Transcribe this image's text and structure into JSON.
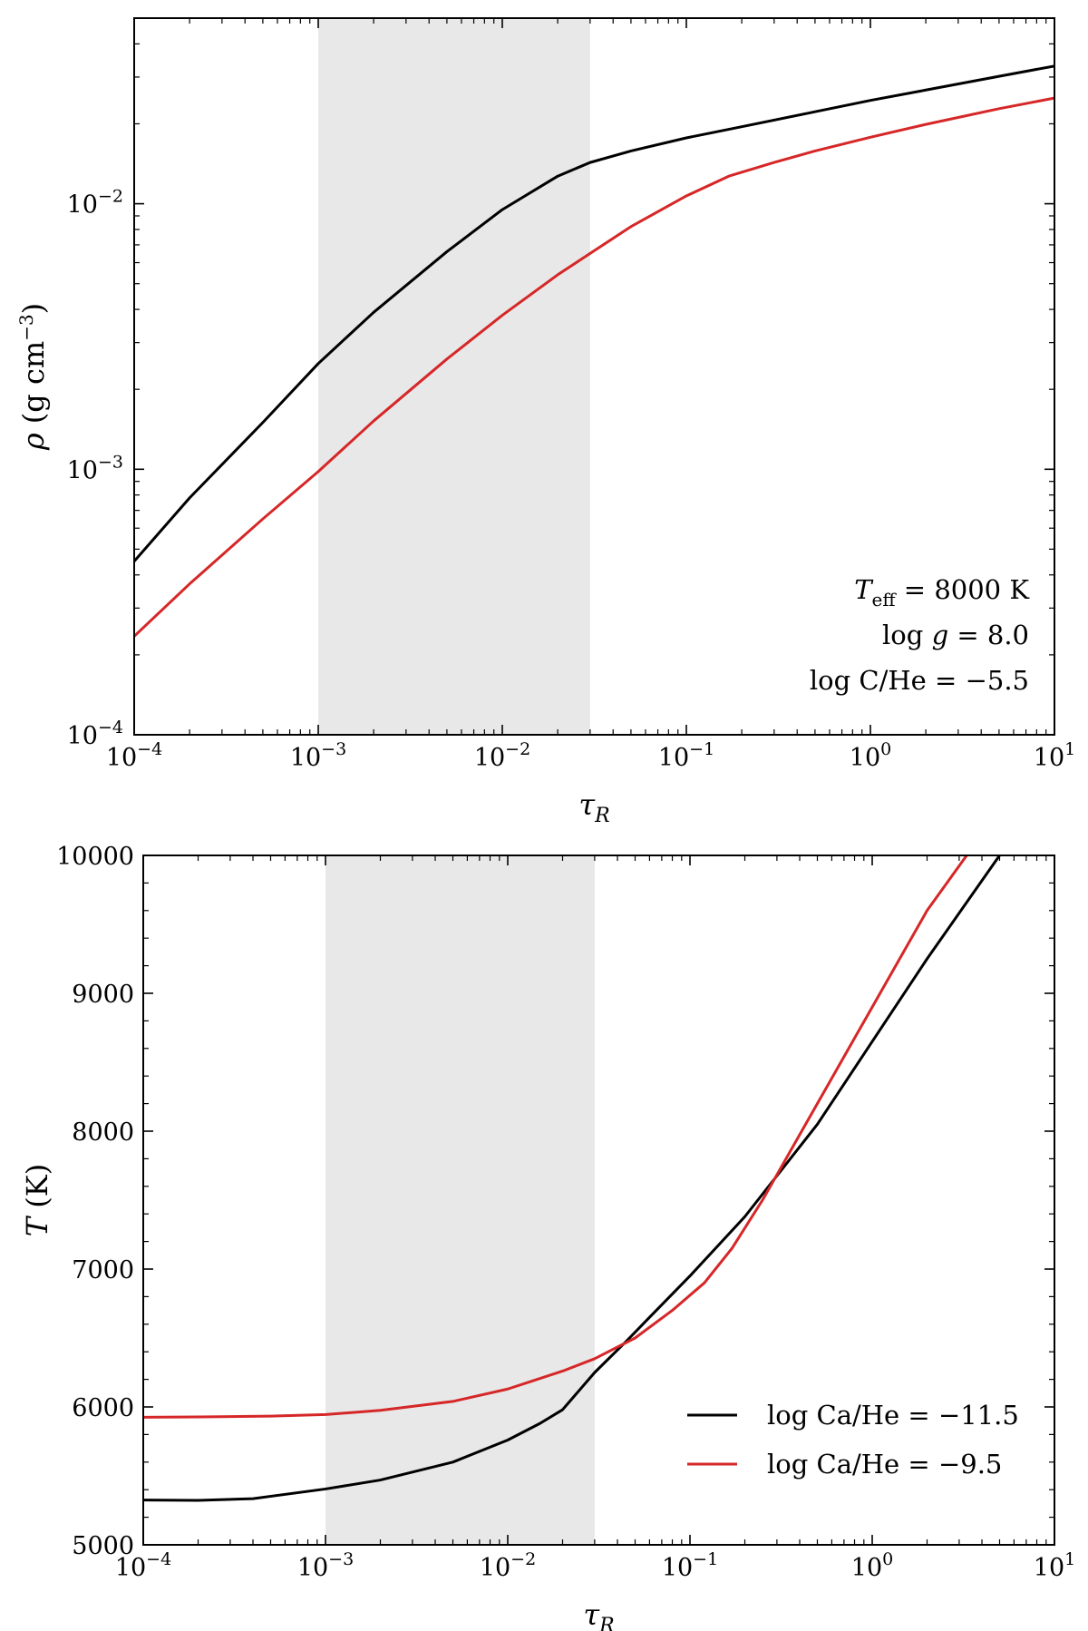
{
  "chart_data": [
    {
      "type": "line",
      "xscale": "log",
      "yscale": "log",
      "xlim": [
        0.0001,
        10
      ],
      "ylim": [
        0.0001,
        0.05
      ],
      "xlabel": "τ_R",
      "ylabel": "ρ (g cm^−3)",
      "x_ticks": [
        {
          "value": 0.0001,
          "base": "10",
          "exp": "−4"
        },
        {
          "value": 0.001,
          "base": "10",
          "exp": "−3"
        },
        {
          "value": 0.01,
          "base": "10",
          "exp": "−2"
        },
        {
          "value": 0.1,
          "base": "10",
          "exp": "−1"
        },
        {
          "value": 1,
          "base": "10",
          "exp": "0"
        },
        {
          "value": 10,
          "base": "10",
          "exp": "1"
        }
      ],
      "y_ticks": [
        {
          "value": 0.0001,
          "base": "10",
          "exp": "−4"
        },
        {
          "value": 0.001,
          "base": "10",
          "exp": "−3"
        },
        {
          "value": 0.01,
          "base": "10",
          "exp": "−2"
        }
      ],
      "shaded_region": {
        "x": [
          0.001,
          0.03
        ],
        "color": "#e8e8e8"
      },
      "annotations": [
        "T_eff = 8000 K",
        "log g = 8.0",
        "log C/He = −5.5"
      ],
      "annotation_position": "bottom-right",
      "series": [
        {
          "color": "#000000",
          "x": [
            0.0001,
            0.0002,
            0.0005,
            0.001,
            0.002,
            0.005,
            0.01,
            0.02,
            0.03,
            0.05,
            0.1,
            0.2,
            0.5,
            1,
            2,
            5,
            10
          ],
          "y": [
            0.00045,
            0.00078,
            0.0015,
            0.0025,
            0.0039,
            0.0066,
            0.0095,
            0.0127,
            0.0143,
            0.0158,
            0.0177,
            0.0195,
            0.0222,
            0.0245,
            0.0268,
            0.0302,
            0.033
          ]
        },
        {
          "color": "#d62728",
          "x": [
            0.0001,
            0.0002,
            0.0005,
            0.001,
            0.002,
            0.005,
            0.01,
            0.02,
            0.03,
            0.05,
            0.1,
            0.17,
            0.3,
            0.5,
            1,
            2,
            5,
            10
          ],
          "y": [
            0.000235,
            0.00037,
            0.00065,
            0.00098,
            0.00152,
            0.0026,
            0.0038,
            0.0054,
            0.0065,
            0.0082,
            0.0107,
            0.0127,
            0.0143,
            0.0158,
            0.0178,
            0.0199,
            0.0228,
            0.025
          ]
        }
      ]
    },
    {
      "type": "line",
      "xscale": "log",
      "yscale": "linear",
      "xlim": [
        0.0001,
        10
      ],
      "ylim": [
        5000,
        10000
      ],
      "xlabel": "τ_R",
      "ylabel": "T (K)",
      "x_ticks": [
        {
          "value": 0.0001,
          "base": "10",
          "exp": "−4"
        },
        {
          "value": 0.001,
          "base": "10",
          "exp": "−3"
        },
        {
          "value": 0.01,
          "base": "10",
          "exp": "−2"
        },
        {
          "value": 0.1,
          "base": "10",
          "exp": "−1"
        },
        {
          "value": 1,
          "base": "10",
          "exp": "0"
        },
        {
          "value": 10,
          "base": "10",
          "exp": "1"
        }
      ],
      "y_ticks": [
        5000,
        6000,
        7000,
        8000,
        9000,
        10000
      ],
      "shaded_region": {
        "x": [
          0.001,
          0.03
        ],
        "color": "#e8e8e8"
      },
      "legend_position": "bottom-right",
      "series": [
        {
          "name": "log Ca/He = −11.5",
          "color": "#000000",
          "x": [
            0.0001,
            0.0002,
            0.0004,
            0.001,
            0.002,
            0.005,
            0.01,
            0.015,
            0.02,
            0.03,
            0.045,
            0.06,
            0.1,
            0.2,
            0.5,
            1,
            2,
            5
          ],
          "y": [
            5325,
            5322,
            5335,
            5405,
            5470,
            5600,
            5760,
            5880,
            5980,
            6250,
            6480,
            6650,
            6950,
            7380,
            8050,
            8650,
            9250,
            10000
          ]
        },
        {
          "name": "log Ca/He = −9.5",
          "color": "#d62728",
          "x": [
            0.0001,
            0.0002,
            0.0005,
            0.001,
            0.002,
            0.005,
            0.01,
            0.02,
            0.03,
            0.05,
            0.08,
            0.12,
            0.17,
            0.25,
            0.5,
            1,
            2,
            3.3
          ],
          "y": [
            5925,
            5928,
            5933,
            5945,
            5975,
            6040,
            6130,
            6260,
            6350,
            6500,
            6700,
            6900,
            7150,
            7500,
            8200,
            8900,
            9600,
            10000
          ]
        }
      ]
    }
  ]
}
